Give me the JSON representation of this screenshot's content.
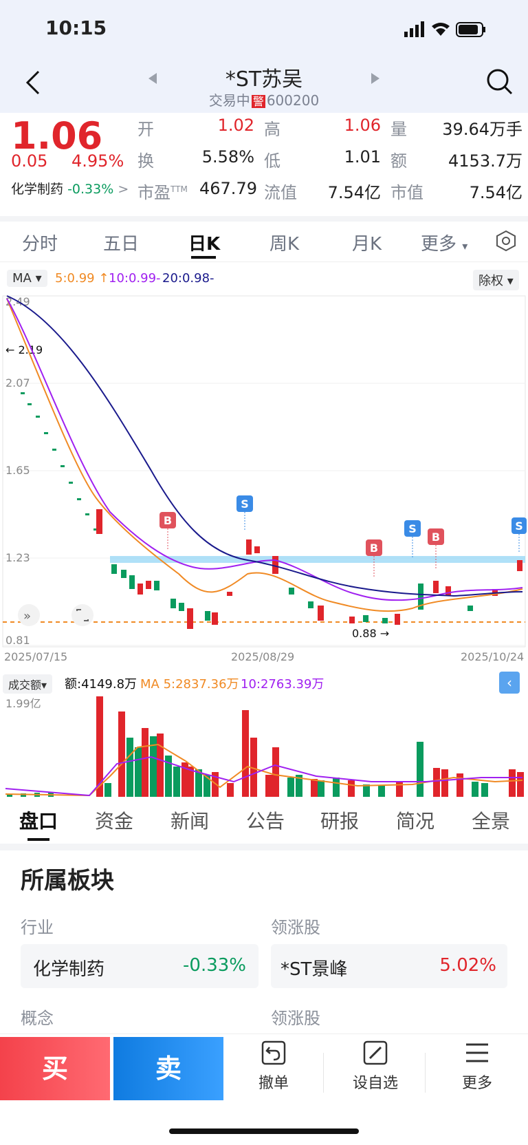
{
  "status": {
    "time": "10:15"
  },
  "header": {
    "title": "*ST苏吴",
    "state": "交易中",
    "warn": "警",
    "code": "600200"
  },
  "quote": {
    "price": "1.06",
    "change": "0.05",
    "change_pct": "4.95%",
    "sector": "化学制药",
    "sector_pct": "-0.33%",
    "open_label": "开",
    "open": "1.02",
    "high_label": "高",
    "high": "1.06",
    "vol_label": "量",
    "vol": "39.64万手",
    "turn_label": "换",
    "turn": "5.58%",
    "low_label": "低",
    "low": "1.01",
    "amt_label": "额",
    "amt": "4153.7万",
    "pe_label": "市盈",
    "pe_sup": "TTM",
    "pe": "467.79",
    "float_label": "流值",
    "float": "7.54亿",
    "mcap_label": "市值",
    "mcap": "7.54亿"
  },
  "tabs": {
    "t1": "分时",
    "t2": "五日",
    "t3": "日K",
    "t4": "周K",
    "t5": "月K",
    "t6": "更多"
  },
  "ma": {
    "label": "MA",
    "ma5": "5:0.99",
    "ma10": "10:0.99-",
    "ma20": "20:0.98-",
    "adjust": "除权"
  },
  "chart_data": {
    "type": "candlestick",
    "y_ticks": [
      "2.49",
      "2.07",
      "1.65",
      "1.23",
      "0.81"
    ],
    "x_ticks": [
      "2025/07/15",
      "2025/08/29",
      "2025/10/24"
    ],
    "ylim": [
      0.81,
      2.49
    ],
    "annotations": {
      "high": "2.19",
      "low": "0.88"
    },
    "markers": [
      "B",
      "S",
      "B",
      "S",
      "B",
      "S"
    ],
    "volume": {
      "label": "成交额",
      "amount": "额:4149.8万",
      "ma5": "MA 5:2837.36万",
      "ma10": "10:2763.39万",
      "ymax": "1.99亿"
    }
  },
  "bottom_tabs": {
    "b1": "盘口",
    "b2": "资金",
    "b3": "新闻",
    "b4": "公告",
    "b5": "研报",
    "b6": "简况",
    "b7": "全景"
  },
  "sector": {
    "title": "所属板块",
    "industry_label": "行业",
    "industry": "化学制药",
    "industry_pct": "-0.33%",
    "leader_label": "领涨股",
    "leader": "*ST景峰",
    "leader_pct": "5.02%",
    "concept_label": "概念",
    "leader_label2": "领涨股"
  },
  "actions": {
    "buy": "买",
    "sell": "卖",
    "cancel": "撤单",
    "watch": "设自选",
    "more": "更多"
  },
  "colors": {
    "up": "#e0252b",
    "down": "#0a9b5e",
    "ma5": "#f08a24",
    "ma10": "#a020f0",
    "ma20": "#1a1a8c"
  }
}
